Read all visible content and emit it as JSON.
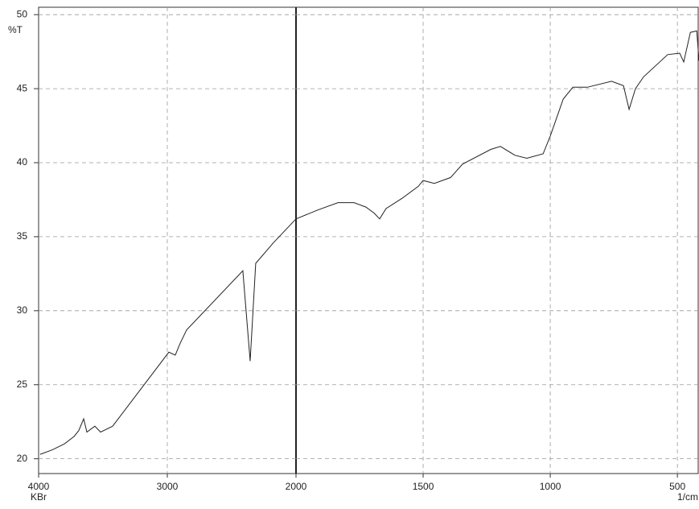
{
  "chart_data": [
    {
      "type": "line",
      "ylabel": "%T",
      "xlabel": "KBr",
      "color": "#222222",
      "xlim": [
        4000,
        2000
      ],
      "ylim": [
        19,
        50.5
      ],
      "xticks": [
        4000,
        3000
      ],
      "yticks": [
        20,
        25,
        30,
        35,
        40,
        45,
        50
      ],
      "grid": true,
      "x": [
        3988,
        3894,
        3800,
        3725,
        3688,
        3650,
        3625,
        3563,
        3519,
        3425,
        2988,
        2938,
        2900,
        2850,
        2413,
        2356,
        2313,
        2175,
        2000
      ],
      "values": [
        20.3,
        20.6,
        21.0,
        21.5,
        21.9,
        22.7,
        21.8,
        22.2,
        21.8,
        22.2,
        27.2,
        27.0,
        27.8,
        28.7,
        32.7,
        26.6,
        33.2,
        34.6,
        36.2
      ]
    },
    {
      "type": "line",
      "xlabel": "1/cm",
      "color": "#222222",
      "xlim": [
        2000,
        415
      ],
      "ylim": [
        19,
        50.5
      ],
      "xticks": [
        2000,
        1500,
        1000,
        500
      ],
      "yticks": [
        20,
        25,
        30,
        35,
        40,
        45,
        50
      ],
      "grid": true,
      "x": [
        2000,
        1915,
        1835,
        1772,
        1725,
        1693,
        1671,
        1646,
        1582,
        1519,
        1500,
        1456,
        1392,
        1345,
        1234,
        1196,
        1139,
        1092,
        1028,
        1000,
        949,
        911,
        854,
        759,
        712,
        690,
        665,
        633,
        538,
        491,
        475,
        449,
        424,
        415
      ],
      "values": [
        36.2,
        36.8,
        37.3,
        37.3,
        37.0,
        36.6,
        36.2,
        36.9,
        37.6,
        38.4,
        38.8,
        38.6,
        39.0,
        39.9,
        40.9,
        41.1,
        40.5,
        40.3,
        40.6,
        41.8,
        44.3,
        45.1,
        45.1,
        45.5,
        45.2,
        43.6,
        45.0,
        45.8,
        47.3,
        47.4,
        46.8,
        48.8,
        48.9,
        46.9
      ]
    }
  ]
}
